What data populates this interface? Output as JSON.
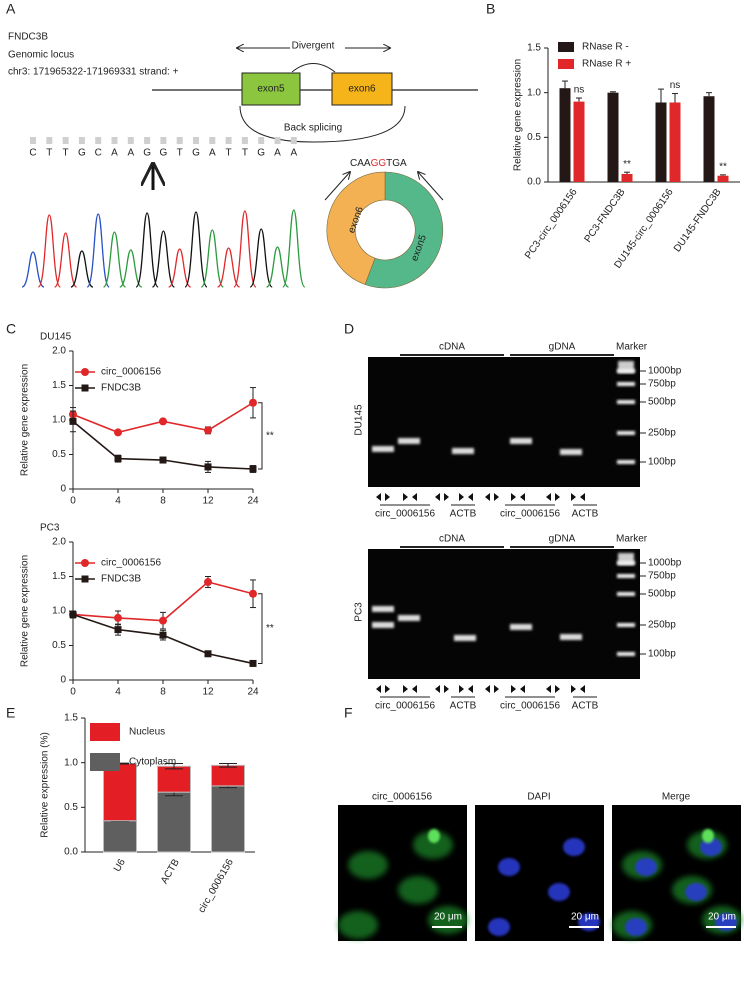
{
  "panel_labels": [
    "A",
    "B",
    "C",
    "D",
    "E",
    "F"
  ],
  "panel_a": {
    "gene": "FNDC3B",
    "locus_label": "Genomic locus",
    "coordinates": "chr3: 171965322-171969331 strand: +",
    "divergent": "Divergent",
    "exon5": "exon5",
    "exon6": "exon6",
    "back_splicing": "Back splicing",
    "sequence": [
      "C",
      "T",
      "T",
      "G",
      "C",
      "A",
      "A",
      "G",
      "G",
      "T",
      "G",
      "A",
      "T",
      "T",
      "G",
      "A",
      "A"
    ],
    "base_colors": {
      "A": "#2a9a3c",
      "C": "#2750c8",
      "G": "#111111",
      "T": "#e0282a"
    },
    "junction": [
      "CAA",
      "G",
      "G",
      "TGA"
    ],
    "junction_colors": [
      "#222222",
      "#e0282a",
      "#e0282a",
      "#222222"
    ],
    "ring_labels": [
      "exon6",
      "exon5"
    ]
  },
  "chart_data": [
    {
      "type": "bar",
      "categories": [
        "PC3-circ_0006156",
        "PC3-FNDC3B",
        "DU145-circ_0006156",
        "DU145-FNDC3B"
      ],
      "series": [
        {
          "name": "RNase R -",
          "color": "#231815",
          "values": [
            1.05,
            1.0,
            0.89,
            0.96
          ],
          "errors": [
            0.08,
            0.01,
            0.15,
            0.04
          ]
        },
        {
          "name": "RNase R +",
          "color": "#e0282a",
          "values": [
            0.9,
            0.09,
            0.89,
            0.07
          ],
          "errors": [
            0.04,
            0.02,
            0.1,
            0.01
          ]
        }
      ],
      "annotations": [
        "ns",
        "**",
        "ns",
        "**"
      ],
      "ylabel": "Relative gene expression",
      "ylim": [
        0,
        1.5
      ],
      "yticks": [
        {
          "value": 0,
          "label": "0.0"
        },
        0.5,
        {
          "value": 1,
          "label": "1.0"
        },
        1.5
      ]
    },
    {
      "type": "line",
      "subtitle": "DU145",
      "categories": [
        "0",
        "4",
        "8",
        "12",
        "24"
      ],
      "series": [
        {
          "name": "circ_0006156",
          "color": "#e0282a",
          "marker": "circle",
          "values": [
            1.08,
            0.82,
            0.98,
            0.85,
            1.25
          ],
          "errors": [
            0.1,
            0.02,
            0.02,
            0.05,
            0.22
          ]
        },
        {
          "name": "FNDC3B",
          "color": "#231815",
          "marker": "square",
          "values": [
            0.98,
            0.44,
            0.42,
            0.32,
            0.29
          ],
          "errors": [
            0.15,
            0.05,
            0.03,
            0.08,
            0.05
          ]
        }
      ],
      "annotation": "**",
      "ylabel": "Relative gene expression",
      "ylim": [
        0,
        2
      ],
      "yticks": [
        0,
        0.5,
        {
          "value": 1,
          "label": "1.0"
        },
        1.5,
        {
          "value": 2,
          "label": "2.0"
        }
      ]
    },
    {
      "type": "line",
      "subtitle": "PC3",
      "categories": [
        "0",
        "4",
        "8",
        "12",
        "24"
      ],
      "series": [
        {
          "name": "circ_0006156",
          "color": "#e0282a",
          "marker": "circle",
          "values": [
            0.95,
            0.9,
            0.86,
            1.42,
            1.25
          ],
          "errors": [
            0.05,
            0.1,
            0.12,
            0.08,
            0.2
          ]
        },
        {
          "name": "FNDC3B",
          "color": "#231815",
          "marker": "square",
          "values": [
            0.95,
            0.73,
            0.65,
            0.38,
            0.24
          ],
          "errors": [
            0.05,
            0.08,
            0.07,
            0.02,
            0.02
          ]
        }
      ],
      "annotation": "**",
      "ylabel": "Relative gene expression",
      "ylim": [
        0,
        2
      ],
      "yticks": [
        0,
        0.5,
        {
          "value": 1,
          "label": "1.0"
        },
        1.5,
        {
          "value": 2,
          "label": "2.0"
        }
      ]
    },
    {
      "type": "stacked_bar",
      "categories": [
        "U6",
        "ACTB",
        "circ_0006156"
      ],
      "series": [
        {
          "name": "Cytoplasm",
          "color": "#5f5f5f",
          "values": [
            0.35,
            0.67,
            0.74
          ],
          "errors": [
            0.005,
            0.04,
            0.02
          ]
        },
        {
          "name": "Nucleus",
          "color": "#e31e24",
          "values": [
            0.64,
            0.29,
            0.23
          ],
          "errors": [
            0.005,
            0.03,
            0.02
          ]
        }
      ],
      "ylabel": "Relative expression (%)",
      "ylim": [
        0,
        1.5
      ],
      "yticks": [
        {
          "value": 0,
          "label": "0.0"
        },
        0.5,
        {
          "value": 1,
          "label": "1.0"
        },
        1.5
      ]
    }
  ],
  "panel_d": {
    "groups": [
      "cDNA",
      "gDNA"
    ],
    "marker": "Marker",
    "sizes": [
      "1000bp",
      "750bp",
      "500bp",
      "250bp",
      "100bp"
    ],
    "lanes": [
      "circ_0006156",
      "ACTB",
      "circ_0006156",
      "ACTB"
    ],
    "cell_lines": [
      "DU145",
      "PC3"
    ]
  },
  "panel_f": {
    "channels": [
      "circ_0006156",
      "DAPI",
      "Merge"
    ],
    "scale_bar": "20 μm"
  }
}
